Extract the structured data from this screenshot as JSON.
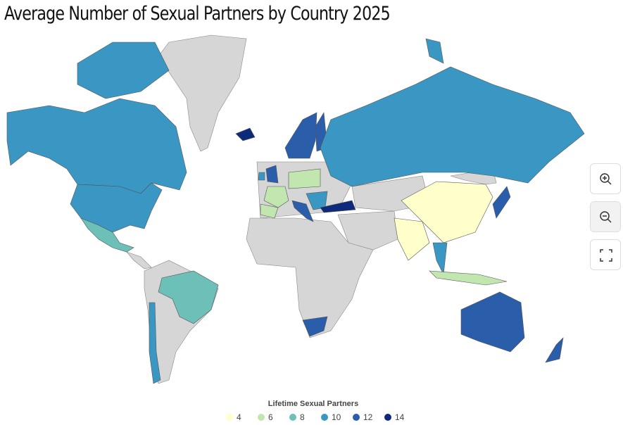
{
  "title": "Average Number of Sexual Partners by Country 2025",
  "map": {
    "legend": {
      "title": "Lifetime Sexual Partners",
      "items": [
        {
          "value": 4,
          "color": "#ffffcc"
        },
        {
          "value": 6,
          "color": "#c2e6b0"
        },
        {
          "value": 8,
          "color": "#6cc0b8"
        },
        {
          "value": 10,
          "color": "#3a97c4"
        },
        {
          "value": 12,
          "color": "#2a5daa"
        },
        {
          "value": 14,
          "color": "#0e2a7a"
        }
      ]
    },
    "region_values": [
      10,
      10,
      10,
      8,
      8,
      10,
      14,
      12,
      10,
      12,
      12,
      6,
      6,
      6,
      12,
      10,
      14,
      12,
      10,
      10,
      4,
      4,
      10,
      6,
      12,
      12,
      12
    ]
  }
}
